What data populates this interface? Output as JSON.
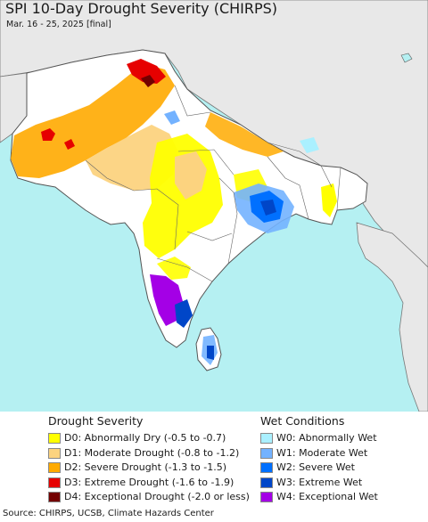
{
  "header": {
    "title": "SPI 10-Day Drought Severity (CHIRPS)",
    "subtitle": "Mar. 16 - 25, 2025 [final]"
  },
  "map": {
    "ocean_color": "#b5f0f2",
    "land_color": "#ffffff",
    "outside_land_color": "#e8e8e8",
    "border_color": "#555555"
  },
  "legend": {
    "drought": {
      "heading": "Drought Severity",
      "items": [
        {
          "label": "D0: Abnormally Dry (-0.5 to -0.7)",
          "color": "#ffff00"
        },
        {
          "label": "D1: Moderate Drought (-0.8 to -1.2)",
          "color": "#fcd37f"
        },
        {
          "label": "D2: Severe Drought (-1.3 to -1.5)",
          "color": "#ffaa00"
        },
        {
          "label": "D3: Extreme Drought (-1.6 to -1.9)",
          "color": "#e60000"
        },
        {
          "label": "D4: Exceptional Drought (-2.0 or less)",
          "color": "#730000"
        }
      ]
    },
    "wet": {
      "heading": "Wet Conditions",
      "items": [
        {
          "label": "W0: Abnormally Wet",
          "color": "#aaf0ff"
        },
        {
          "label": "W1: Moderate Wet",
          "color": "#73b2ff"
        },
        {
          "label": "W2: Severe Wet",
          "color": "#0070ff"
        },
        {
          "label": "W3: Extreme Wet",
          "color": "#0046c8"
        },
        {
          "label": "W4: Exceptional Wet",
          "color": "#a400e6"
        }
      ]
    }
  },
  "footer": {
    "source": "Source: CHIRPS, UCSB, Climate Hazards Center"
  }
}
